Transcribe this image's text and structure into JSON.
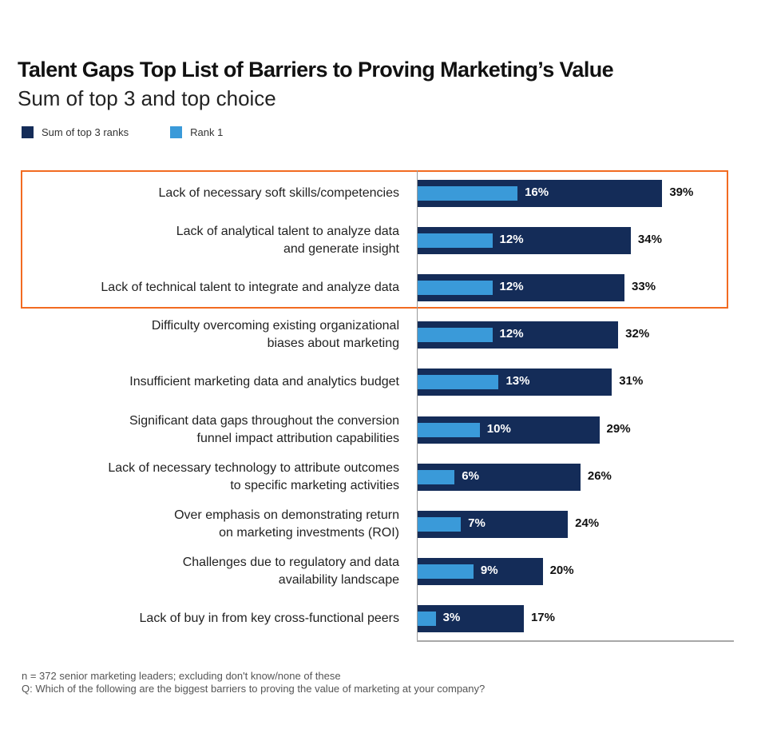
{
  "header": {
    "title": "Talent Gaps Top List of Barriers to Proving Marketing’s Value",
    "subtitle": "Sum of top 3 and top choice"
  },
  "legend": [
    {
      "label": "Sum of top 3 ranks",
      "color": "#142c58"
    },
    {
      "label": "Rank 1",
      "color": "#3a9ad9"
    }
  ],
  "colors": {
    "sum_top3": "#142c58",
    "rank1": "#3a9ad9",
    "highlight_border": "#f26b21"
  },
  "chart_data": {
    "type": "bar",
    "orientation": "horizontal",
    "title": "Talent Gaps Top List of Barriers to Proving Marketing’s Value",
    "subtitle": "Sum of top 3 and top choice",
    "xlabel": "",
    "ylabel": "",
    "categories": [
      "Lack of necessary soft skills/competencies",
      "Lack of analytical talent to analyze data and generate insight",
      "Lack of technical talent to integrate and analyze data",
      "Difficulty overcoming existing organizational biases about marketing",
      "Insufficient marketing data and analytics budget",
      "Significant data gaps throughout the conversion funnel impact attribution capabilities",
      "Lack of necessary technology to attribute outcomes to specific marketing activities",
      "Over emphasis on demonstrating return on marketing investments (ROI)",
      "Challenges due to regulatory and data availability landscape",
      "Lack of buy in from key cross-functional peers"
    ],
    "series": [
      {
        "name": "Sum of top 3 ranks",
        "values": [
          39,
          34,
          33,
          32,
          31,
          29,
          26,
          24,
          20,
          17
        ]
      },
      {
        "name": "Rank 1",
        "values": [
          16,
          12,
          12,
          12,
          13,
          10,
          6,
          7,
          9,
          3
        ]
      }
    ],
    "highlighted_categories": [
      0,
      1,
      2
    ],
    "xlim": [
      0,
      50
    ],
    "grid": false,
    "legend_position": "top-left",
    "value_labels": true
  },
  "rows": [
    {
      "line1": "Lack of necessary soft skills/competencies",
      "line2": "",
      "total": 39,
      "rank1": 16,
      "total_label": "39%",
      "rank1_label": "16%"
    },
    {
      "line1": "Lack of analytical talent to analyze data",
      "line2": "and generate insight",
      "total": 34,
      "rank1": 12,
      "total_label": "34%",
      "rank1_label": "12%"
    },
    {
      "line1": "Lack of technical talent to integrate and analyze data",
      "line2": "",
      "total": 33,
      "rank1": 12,
      "total_label": "33%",
      "rank1_label": "12%"
    },
    {
      "line1": "Difficulty overcoming existing organizational",
      "line2": "biases about marketing",
      "total": 32,
      "rank1": 12,
      "total_label": "32%",
      "rank1_label": "12%"
    },
    {
      "line1": "Insufficient marketing data and analytics budget",
      "line2": "",
      "total": 31,
      "rank1": 13,
      "total_label": "31%",
      "rank1_label": "13%"
    },
    {
      "line1": "Significant data gaps throughout the conversion",
      "line2": "funnel impact attribution capabilities",
      "total": 29,
      "rank1": 10,
      "total_label": "29%",
      "rank1_label": "10%"
    },
    {
      "line1": "Lack of necessary technology to attribute outcomes",
      "line2": "to specific marketing activities",
      "total": 26,
      "rank1": 6,
      "total_label": "26%",
      "rank1_label": "6%"
    },
    {
      "line1": "Over emphasis on demonstrating return",
      "line2": "on marketing investments (ROI)",
      "total": 24,
      "rank1": 7,
      "total_label": "24%",
      "rank1_label": "7%"
    },
    {
      "line1": "Challenges due to regulatory and data",
      "line2": "availability landscape",
      "total": 20,
      "rank1": 9,
      "total_label": "20%",
      "rank1_label": "9%"
    },
    {
      "line1": "Lack of buy in from key cross-functional peers",
      "line2": "",
      "total": 17,
      "rank1": 3,
      "total_label": "17%",
      "rank1_label": "3%"
    }
  ],
  "footnote": {
    "line1": "n = 372 senior marketing leaders; excluding don't know/none of these",
    "line2": "Q: Which of the following are the biggest barriers to proving the value of marketing at your company?"
  }
}
